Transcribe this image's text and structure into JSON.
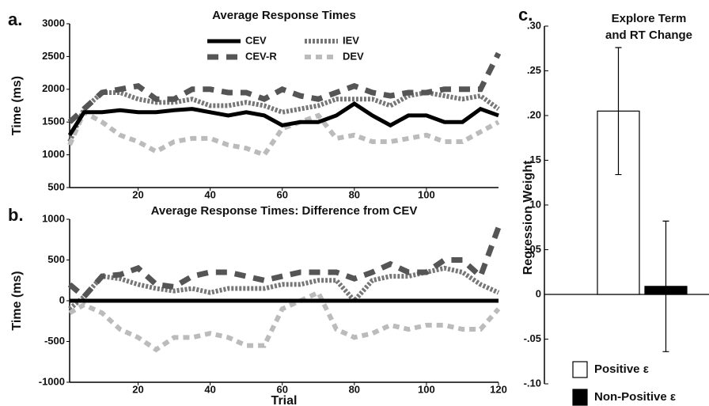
{
  "chart_data": [
    {
      "type": "line",
      "panel": "a.",
      "title": "Average Response Times",
      "ylabel": "Time (ms)",
      "x": [
        1,
        5,
        10,
        15,
        20,
        25,
        30,
        35,
        40,
        45,
        50,
        55,
        60,
        65,
        70,
        75,
        80,
        85,
        90,
        95,
        100,
        105,
        110,
        115,
        120
      ],
      "series": [
        {
          "name": "CEV",
          "color": "#000000",
          "values": [
            1300,
            1650,
            1650,
            1680,
            1650,
            1650,
            1680,
            1700,
            1650,
            1600,
            1650,
            1600,
            1450,
            1500,
            1500,
            1600,
            1780,
            1600,
            1450,
            1600,
            1600,
            1500,
            1500,
            1700,
            1600
          ]
        },
        {
          "name": "CEV-R",
          "color": "#555555",
          "values": [
            1500,
            1700,
            1950,
            2000,
            2050,
            1850,
            1850,
            2000,
            2000,
            1950,
            1950,
            1850,
            2000,
            1900,
            1850,
            1950,
            2050,
            1950,
            1900,
            1950,
            1950,
            2000,
            2000,
            2000,
            2550
          ]
        },
        {
          "name": "IEV",
          "color": "#777777",
          "values": [
            1200,
            1700,
            1950,
            1950,
            1850,
            1800,
            1800,
            1850,
            1750,
            1750,
            1800,
            1750,
            1650,
            1700,
            1750,
            1850,
            1850,
            1850,
            1750,
            1900,
            1950,
            1900,
            1850,
            1900,
            1700
          ]
        },
        {
          "name": "DEV",
          "color": "#bbbbbb",
          "values": [
            1150,
            1650,
            1500,
            1300,
            1200,
            1050,
            1200,
            1250,
            1250,
            1150,
            1100,
            1000,
            1400,
            1500,
            1600,
            1250,
            1300,
            1200,
            1200,
            1250,
            1300,
            1200,
            1200,
            1350,
            1500
          ]
        }
      ],
      "xlim": [
        1,
        120
      ],
      "xticks": [
        20,
        40,
        60,
        80,
        100
      ],
      "ylim": [
        500,
        3000
      ],
      "yticks": [
        500,
        1000,
        1500,
        2000,
        2500,
        3000
      ]
    },
    {
      "type": "line",
      "panel": "b.",
      "title": "Average Response Times: Difference from CEV",
      "ylabel": "Time (ms)",
      "xlabel": "Trial",
      "x": [
        1,
        5,
        10,
        15,
        20,
        25,
        30,
        35,
        40,
        45,
        50,
        55,
        60,
        65,
        70,
        75,
        80,
        85,
        90,
        95,
        100,
        105,
        110,
        115,
        120
      ],
      "series": [
        {
          "color": "#000000",
          "values": [
            0,
            0,
            0,
            0,
            0,
            0,
            0,
            0,
            0,
            0,
            0,
            0,
            0,
            0,
            0,
            0,
            0,
            0,
            0,
            0,
            0,
            0,
            0,
            0,
            0
          ]
        },
        {
          "color": "#555555",
          "values": [
            200,
            50,
            300,
            320,
            400,
            200,
            170,
            300,
            350,
            350,
            300,
            250,
            300,
            350,
            350,
            350,
            270,
            350,
            450,
            350,
            350,
            500,
            500,
            300,
            900
          ]
        },
        {
          "color": "#777777",
          "values": [
            -100,
            50,
            300,
            270,
            200,
            150,
            120,
            150,
            100,
            150,
            150,
            150,
            200,
            200,
            250,
            250,
            0,
            250,
            300,
            300,
            350,
            400,
            350,
            200,
            100
          ]
        },
        {
          "color": "#bbbbbb",
          "values": [
            -150,
            -50,
            -150,
            -350,
            -450,
            -600,
            -450,
            -450,
            -400,
            -450,
            -550,
            -550,
            -100,
            0,
            100,
            -350,
            -450,
            -400,
            -300,
            -350,
            -300,
            -300,
            -350,
            -350,
            -100
          ]
        }
      ],
      "xlim": [
        1,
        120
      ],
      "xticks": [
        20,
        40,
        60,
        80,
        100,
        120
      ],
      "ylim": [
        -1000,
        1000
      ],
      "yticks": [
        -1000,
        -500,
        0,
        500,
        1000
      ]
    },
    {
      "type": "bar",
      "panel": "c.",
      "title": [
        "Explore Term",
        "and RT Change"
      ],
      "ylabel": "Regression Weight",
      "series": [
        {
          "name": "Positive ε",
          "color": "#ffffff",
          "values": [
            0.205
          ],
          "errors": [
            0.071
          ]
        },
        {
          "name": "Non-Positive ε",
          "color": "#000000",
          "values": [
            0.009
          ],
          "errors": [
            0.073
          ]
        }
      ],
      "ylim": [
        -0.1,
        0.3
      ],
      "yticks": [
        {
          "value": -0.1,
          "label": "-.10"
        },
        {
          "value": -0.05,
          "label": "-.05"
        },
        0,
        {
          "value": 0.05,
          "label": ".05"
        },
        {
          "value": 0.1,
          "label": ".10"
        },
        {
          "value": 0.15,
          "label": ".15"
        },
        {
          "value": 0.2,
          "label": ".20"
        },
        {
          "value": 0.25,
          "label": ".25"
        },
        {
          "value": 0.3,
          "label": ".30"
        }
      ]
    }
  ]
}
